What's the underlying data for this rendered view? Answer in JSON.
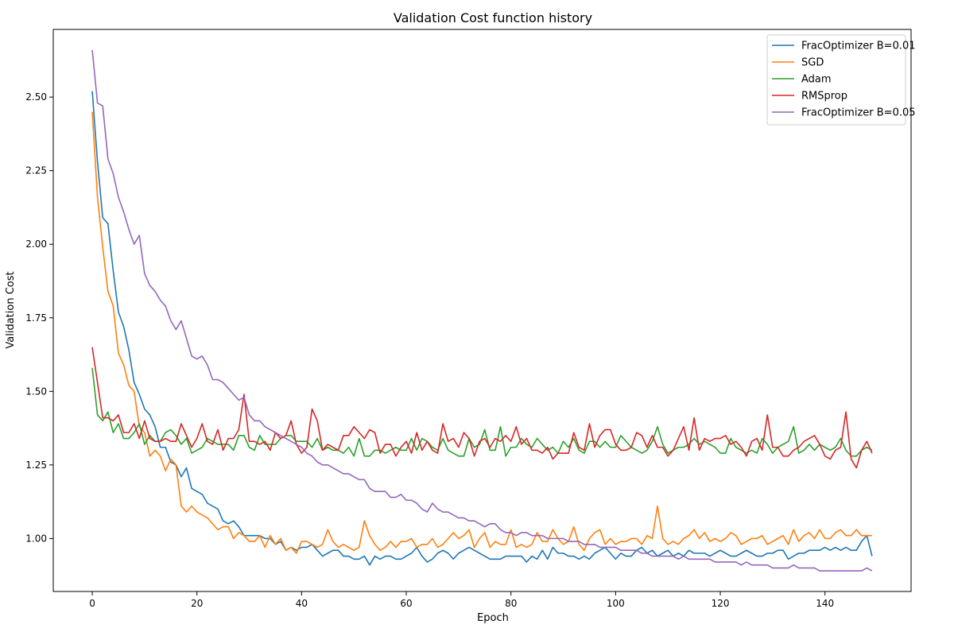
{
  "chart_data": {
    "type": "line",
    "title": "Validation Cost function history",
    "xlabel": "Epoch",
    "ylabel": "Validation Cost",
    "xlim": [
      -7.45,
      156.45
    ],
    "ylim": [
      0.82,
      2.73
    ],
    "xticks": [
      0,
      20,
      40,
      60,
      80,
      100,
      120,
      140
    ],
    "xtick_labels": [
      "0",
      "20",
      "40",
      "60",
      "80",
      "100",
      "120",
      "140"
    ],
    "yticks": [
      1.0,
      1.25,
      1.5,
      1.75,
      2.0,
      2.25,
      2.5
    ],
    "ytick_labels": [
      "1.00",
      "1.25",
      "1.50",
      "1.75",
      "2.00",
      "2.25",
      "2.50"
    ],
    "grid": false,
    "legend_position": "top-right",
    "series": [
      {
        "name": "FracOptimizer B=0.01",
        "color": "#1f77b4",
        "values": [
          2.52,
          2.28,
          2.09,
          2.07,
          1.91,
          1.77,
          1.72,
          1.64,
          1.53,
          1.49,
          1.44,
          1.42,
          1.38,
          1.31,
          1.31,
          1.26,
          1.25,
          1.21,
          1.24,
          1.17,
          1.16,
          1.15,
          1.12,
          1.11,
          1.1,
          1.06,
          1.05,
          1.06,
          1.04,
          1.01,
          1.01,
          1.01,
          1.01,
          1.0,
          1.0,
          0.98,
          0.99,
          0.96,
          0.97,
          0.96,
          0.97,
          0.97,
          0.98,
          0.96,
          0.94,
          0.95,
          0.96,
          0.96,
          0.94,
          0.94,
          0.93,
          0.93,
          0.94,
          0.91,
          0.94,
          0.93,
          0.94,
          0.94,
          0.93,
          0.93,
          0.94,
          0.95,
          0.97,
          0.94,
          0.92,
          0.93,
          0.95,
          0.96,
          0.95,
          0.93,
          0.95,
          0.96,
          0.97,
          0.96,
          0.95,
          0.94,
          0.93,
          0.93,
          0.93,
          0.94,
          0.94,
          0.94,
          0.94,
          0.92,
          0.94,
          0.93,
          0.96,
          0.93,
          0.97,
          0.95,
          0.95,
          0.94,
          0.94,
          0.93,
          0.94,
          0.93,
          0.95,
          0.96,
          0.97,
          0.95,
          0.93,
          0.95,
          0.94,
          0.94,
          0.96,
          0.97,
          0.95,
          0.96,
          0.94,
          0.95,
          0.96,
          0.94,
          0.95,
          0.94,
          0.96,
          0.95,
          0.95,
          0.95,
          0.94,
          0.95,
          0.96,
          0.95,
          0.94,
          0.94,
          0.95,
          0.96,
          0.95,
          0.94,
          0.94,
          0.95,
          0.95,
          0.96,
          0.96,
          0.93,
          0.94,
          0.95,
          0.95,
          0.96,
          0.96,
          0.96,
          0.97,
          0.96,
          0.97,
          0.96,
          0.97,
          0.96,
          0.96,
          0.99,
          1.01,
          0.94
        ]
      },
      {
        "name": "SGD",
        "color": "#ff7f0e",
        "values": [
          2.45,
          2.16,
          1.99,
          1.84,
          1.79,
          1.63,
          1.59,
          1.52,
          1.5,
          1.38,
          1.36,
          1.28,
          1.3,
          1.28,
          1.23,
          1.27,
          1.25,
          1.11,
          1.09,
          1.11,
          1.09,
          1.08,
          1.07,
          1.05,
          1.03,
          1.04,
          1.04,
          1.0,
          1.02,
          1.01,
          0.99,
          0.99,
          1.01,
          0.97,
          1.01,
          0.98,
          1.0,
          0.96,
          0.97,
          0.95,
          0.99,
          0.99,
          0.98,
          0.97,
          0.98,
          1.03,
          0.99,
          0.97,
          0.98,
          0.97,
          0.96,
          0.97,
          1.06,
          1.01,
          0.98,
          0.96,
          0.97,
          0.99,
          0.97,
          0.99,
          0.99,
          1.0,
          0.97,
          0.98,
          0.98,
          1.0,
          0.97,
          0.98,
          1.0,
          1.02,
          1.0,
          1.01,
          1.03,
          0.97,
          1.0,
          1.02,
          0.97,
          0.99,
          0.98,
          0.98,
          1.03,
          0.97,
          0.98,
          0.97,
          0.98,
          1.02,
          0.99,
          0.99,
          1.03,
          1.0,
          0.98,
          0.99,
          1.04,
          0.98,
          0.96,
          1.0,
          1.02,
          1.03,
          0.98,
          1.0,
          0.98,
          0.99,
          0.99,
          1.0,
          1.0,
          0.98,
          1.01,
          1.0,
          1.11,
          1.0,
          0.98,
          0.99,
          0.98,
          1.0,
          1.01,
          1.03,
          1.0,
          1.02,
          0.99,
          1.0,
          0.99,
          1.0,
          1.02,
          1.01,
          0.98,
          0.99,
          1.0,
          1.0,
          1.01,
          0.98,
          0.99,
          1.0,
          1.01,
          0.98,
          1.03,
          0.99,
          1.01,
          1.02,
          1.0,
          1.03,
          1.0,
          1.0,
          1.02,
          1.03,
          1.01,
          1.01,
          1.03,
          1.01,
          1.01,
          1.01
        ]
      },
      {
        "name": "Adam",
        "color": "#2ca02c",
        "values": [
          1.58,
          1.42,
          1.4,
          1.43,
          1.36,
          1.39,
          1.34,
          1.34,
          1.36,
          1.39,
          1.32,
          1.35,
          1.33,
          1.33,
          1.36,
          1.37,
          1.35,
          1.32,
          1.34,
          1.29,
          1.3,
          1.31,
          1.34,
          1.33,
          1.32,
          1.32,
          1.32,
          1.3,
          1.35,
          1.35,
          1.31,
          1.3,
          1.35,
          1.32,
          1.32,
          1.32,
          1.34,
          1.35,
          1.35,
          1.33,
          1.33,
          1.33,
          1.31,
          1.34,
          1.3,
          1.31,
          1.3,
          1.3,
          1.29,
          1.31,
          1.28,
          1.34,
          1.28,
          1.28,
          1.3,
          1.3,
          1.29,
          1.3,
          1.31,
          1.3,
          1.3,
          1.34,
          1.3,
          1.34,
          1.33,
          1.31,
          1.3,
          1.34,
          1.3,
          1.29,
          1.28,
          1.28,
          1.34,
          1.31,
          1.32,
          1.37,
          1.3,
          1.3,
          1.38,
          1.28,
          1.31,
          1.31,
          1.34,
          1.32,
          1.31,
          1.34,
          1.32,
          1.3,
          1.31,
          1.29,
          1.33,
          1.31,
          1.34,
          1.3,
          1.29,
          1.33,
          1.33,
          1.31,
          1.33,
          1.31,
          1.31,
          1.35,
          1.33,
          1.31,
          1.3,
          1.29,
          1.3,
          1.33,
          1.38,
          1.32,
          1.29,
          1.3,
          1.31,
          1.31,
          1.32,
          1.34,
          1.32,
          1.33,
          1.32,
          1.31,
          1.29,
          1.29,
          1.34,
          1.31,
          1.3,
          1.29,
          1.3,
          1.29,
          1.34,
          1.32,
          1.29,
          1.31,
          1.32,
          1.33,
          1.38,
          1.29,
          1.3,
          1.32,
          1.3,
          1.32,
          1.31,
          1.3,
          1.31,
          1.34,
          1.3,
          1.28,
          1.28,
          1.3,
          1.31,
          1.3
        ]
      },
      {
        "name": "RMSprop",
        "color": "#d62728",
        "values": [
          1.65,
          1.53,
          1.41,
          1.41,
          1.4,
          1.42,
          1.36,
          1.36,
          1.39,
          1.34,
          1.4,
          1.34,
          1.33,
          1.33,
          1.34,
          1.33,
          1.33,
          1.39,
          1.35,
          1.31,
          1.34,
          1.39,
          1.33,
          1.32,
          1.37,
          1.3,
          1.34,
          1.34,
          1.37,
          1.49,
          1.33,
          1.33,
          1.32,
          1.33,
          1.3,
          1.36,
          1.34,
          1.35,
          1.4,
          1.32,
          1.29,
          1.31,
          1.44,
          1.4,
          1.3,
          1.32,
          1.31,
          1.3,
          1.35,
          1.35,
          1.38,
          1.36,
          1.34,
          1.37,
          1.36,
          1.29,
          1.32,
          1.32,
          1.28,
          1.31,
          1.33,
          1.29,
          1.36,
          1.3,
          1.33,
          1.3,
          1.29,
          1.39,
          1.33,
          1.34,
          1.31,
          1.36,
          1.34,
          1.28,
          1.33,
          1.34,
          1.31,
          1.34,
          1.33,
          1.35,
          1.33,
          1.38,
          1.32,
          1.34,
          1.3,
          1.3,
          1.29,
          1.31,
          1.27,
          1.29,
          1.29,
          1.29,
          1.36,
          1.31,
          1.3,
          1.39,
          1.31,
          1.35,
          1.37,
          1.37,
          1.32,
          1.3,
          1.3,
          1.31,
          1.36,
          1.35,
          1.31,
          1.35,
          1.31,
          1.31,
          1.28,
          1.3,
          1.34,
          1.38,
          1.3,
          1.41,
          1.3,
          1.34,
          1.33,
          1.34,
          1.34,
          1.35,
          1.32,
          1.33,
          1.31,
          1.28,
          1.33,
          1.34,
          1.3,
          1.42,
          1.31,
          1.31,
          1.28,
          1.28,
          1.3,
          1.31,
          1.33,
          1.34,
          1.35,
          1.32,
          1.28,
          1.27,
          1.3,
          1.31,
          1.43,
          1.27,
          1.24,
          1.3,
          1.33,
          1.29
        ]
      },
      {
        "name": "FracOptimizer B=0.05",
        "color": "#9467bd",
        "values": [
          2.66,
          2.48,
          2.47,
          2.29,
          2.24,
          2.16,
          2.11,
          2.05,
          2.0,
          2.03,
          1.9,
          1.86,
          1.84,
          1.81,
          1.79,
          1.74,
          1.71,
          1.74,
          1.68,
          1.62,
          1.61,
          1.62,
          1.59,
          1.54,
          1.54,
          1.53,
          1.51,
          1.49,
          1.47,
          1.48,
          1.42,
          1.4,
          1.4,
          1.38,
          1.37,
          1.36,
          1.35,
          1.34,
          1.33,
          1.32,
          1.31,
          1.29,
          1.28,
          1.26,
          1.25,
          1.25,
          1.24,
          1.23,
          1.22,
          1.22,
          1.21,
          1.2,
          1.2,
          1.17,
          1.16,
          1.16,
          1.16,
          1.14,
          1.14,
          1.15,
          1.13,
          1.13,
          1.12,
          1.1,
          1.09,
          1.12,
          1.1,
          1.09,
          1.09,
          1.08,
          1.07,
          1.07,
          1.06,
          1.06,
          1.05,
          1.04,
          1.05,
          1.05,
          1.03,
          1.02,
          1.02,
          1.01,
          1.02,
          1.02,
          1.01,
          1.01,
          1.01,
          1.0,
          1.0,
          1.0,
          1.0,
          0.99,
          0.99,
          0.99,
          0.98,
          0.98,
          0.98,
          0.97,
          0.97,
          0.97,
          0.97,
          0.96,
          0.96,
          0.96,
          0.96,
          0.95,
          0.95,
          0.94,
          0.94,
          0.94,
          0.94,
          0.94,
          0.93,
          0.94,
          0.93,
          0.93,
          0.93,
          0.93,
          0.93,
          0.92,
          0.92,
          0.92,
          0.92,
          0.92,
          0.91,
          0.92,
          0.91,
          0.91,
          0.91,
          0.91,
          0.9,
          0.9,
          0.9,
          0.9,
          0.91,
          0.9,
          0.9,
          0.9,
          0.9,
          0.89,
          0.89,
          0.89,
          0.89,
          0.89,
          0.89,
          0.89,
          0.89,
          0.89,
          0.9,
          0.89
        ]
      }
    ]
  }
}
